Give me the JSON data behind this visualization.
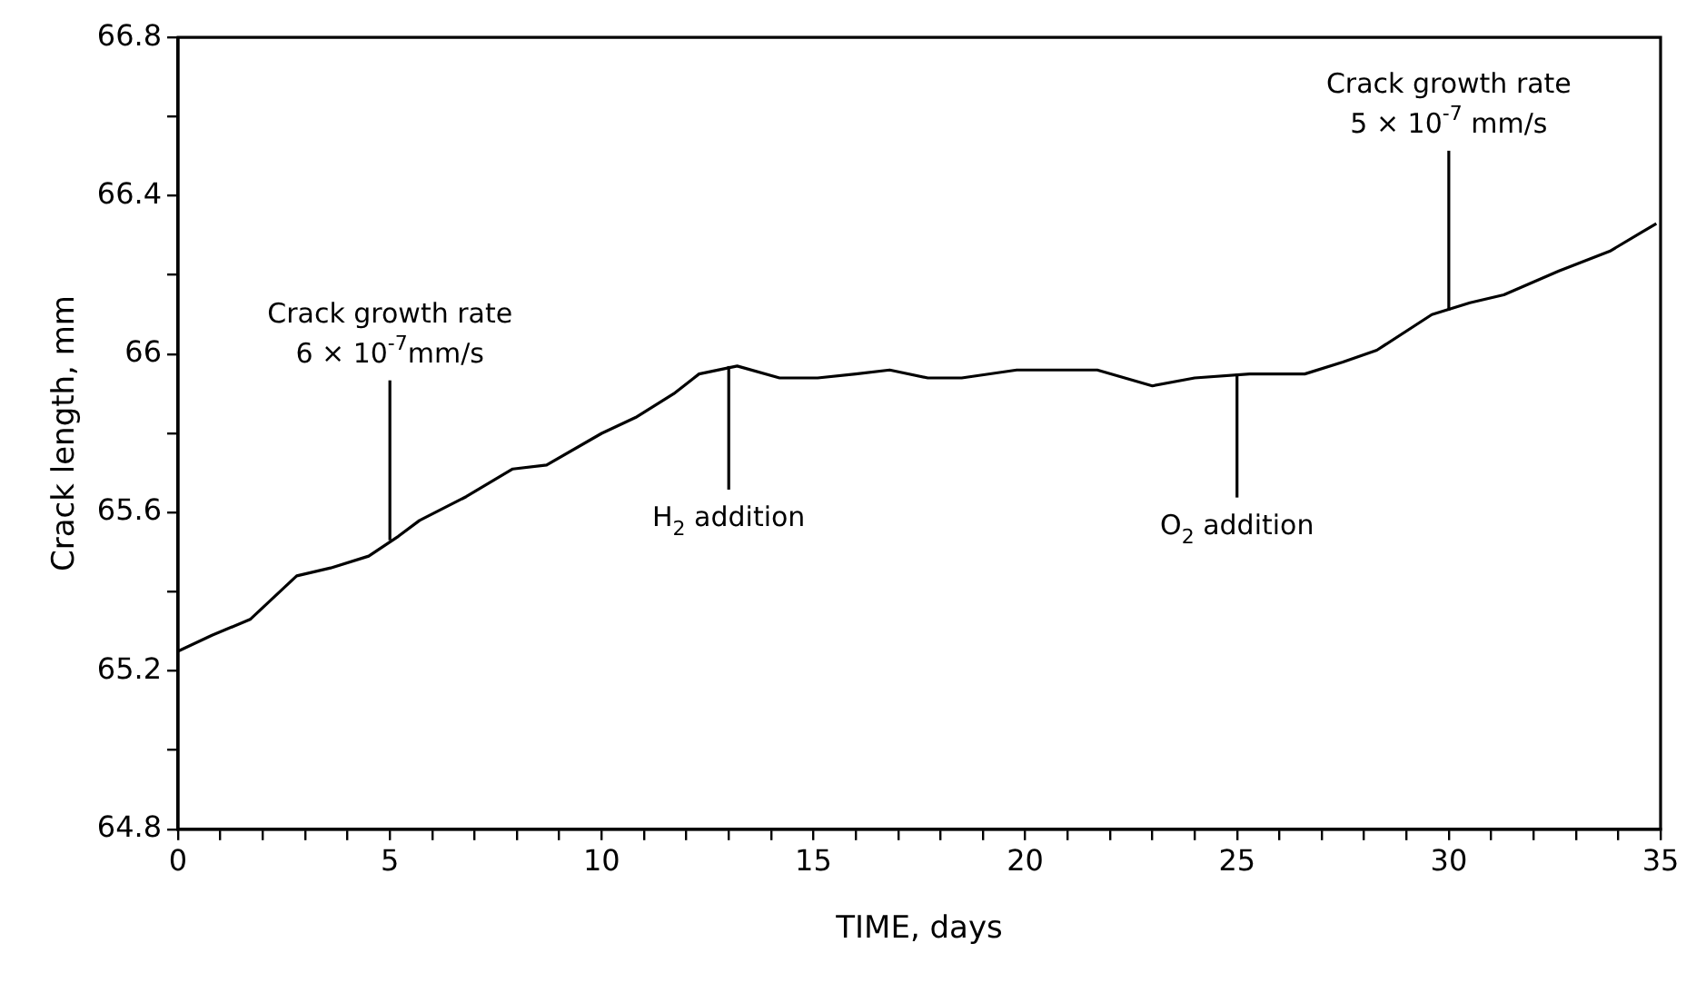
{
  "chart_data": {
    "type": "line",
    "xlabel": "TIME, days",
    "ylabel": "Crack length, mm",
    "x": [
      0,
      0.8,
      1.7,
      2.8,
      3.6,
      4.5,
      5.2,
      5.7,
      6.8,
      7.9,
      8.7,
      10,
      10.8,
      11.7,
      12.3,
      13.2,
      14.2,
      15.1,
      16,
      16.8,
      17.7,
      18.5,
      19.8,
      20.7,
      21.7,
      23,
      24,
      25.3,
      26.6,
      27.5,
      28.3,
      29.6,
      30.5,
      31.3,
      32.6,
      33.8,
      34.9
    ],
    "series": [
      {
        "color": "#000000",
        "values": [
          65.25,
          65.29,
          65.33,
          65.44,
          65.46,
          65.49,
          65.54,
          65.58,
          65.64,
          65.71,
          65.72,
          65.8,
          65.84,
          65.9,
          65.95,
          65.97,
          65.94,
          65.94,
          65.95,
          65.96,
          65.94,
          65.94,
          65.96,
          65.96,
          65.96,
          65.92,
          65.94,
          65.95,
          65.95,
          65.98,
          66.01,
          66.1,
          66.13,
          66.15,
          66.21,
          66.26,
          66.33
        ]
      }
    ],
    "xlim": [
      0,
      35
    ],
    "ylim": [
      64.8,
      66.8
    ],
    "xticks": [
      0,
      {
        "value": 1,
        "label": null
      },
      {
        "value": 2,
        "label": null
      },
      {
        "value": 3,
        "label": null
      },
      {
        "value": 4,
        "label": null
      },
      5,
      {
        "value": 6,
        "label": null
      },
      {
        "value": 7,
        "label": null
      },
      {
        "value": 8,
        "label": null
      },
      {
        "value": 9,
        "label": null
      },
      10,
      {
        "value": 11,
        "label": null
      },
      {
        "value": 12,
        "label": null
      },
      {
        "value": 13,
        "label": null
      },
      {
        "value": 14,
        "label": null
      },
      15,
      {
        "value": 16,
        "label": null
      },
      {
        "value": 17,
        "label": null
      },
      {
        "value": 18,
        "label": null
      },
      {
        "value": 19,
        "label": null
      },
      20,
      {
        "value": 21,
        "label": null
      },
      {
        "value": 22,
        "label": null
      },
      {
        "value": 23,
        "label": null
      },
      {
        "value": 24,
        "label": null
      },
      25,
      {
        "value": 26,
        "label": null
      },
      {
        "value": 27,
        "label": null
      },
      {
        "value": 28,
        "label": null
      },
      {
        "value": 29,
        "label": null
      },
      30,
      {
        "value": 31,
        "label": null
      },
      {
        "value": 32,
        "label": null
      },
      {
        "value": 33,
        "label": null
      },
      {
        "value": 34,
        "label": null
      },
      35
    ],
    "yticks": [
      64.8,
      {
        "value": 65,
        "label": null
      },
      65.2,
      {
        "value": 65.4,
        "label": null
      },
      65.6,
      {
        "value": 65.8,
        "label": null
      },
      66,
      {
        "value": 66.2,
        "label": null
      },
      66.4,
      {
        "value": 66.6,
        "label": null
      },
      66.8
    ],
    "grid": false,
    "legend": false,
    "marker": "none",
    "line_style": "solid",
    "annotations": [
      {
        "text": "Crack growth rate\n6 × 10$^{-7}$mm/s",
        "x": 5,
        "y": 65.53
      },
      {
        "text": "H$_{2}$ addition",
        "x": 13,
        "y": 65.97
      },
      {
        "text": "O$_{2}$ addition",
        "x": 25,
        "y": 65.95
      },
      {
        "text": "Crack growth rate\n5 × 10$^{-7}$ mm/s",
        "x": 30,
        "y": 66.11
      }
    ]
  }
}
